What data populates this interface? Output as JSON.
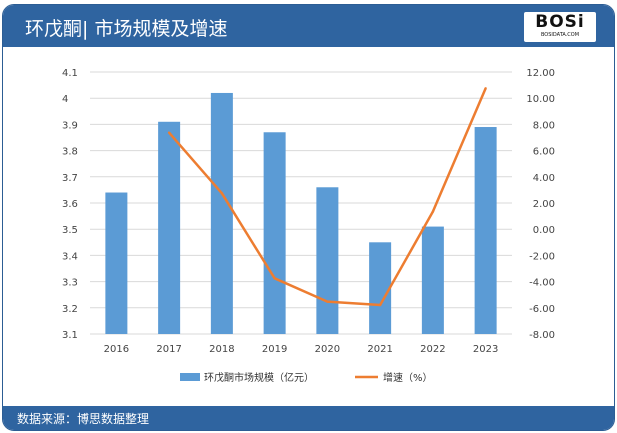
{
  "header": {
    "title": "环戊酮| 市场规模及增速",
    "logo_text": "BOSi",
    "logo_sub": "BOSIDATA.COM"
  },
  "footer": {
    "source": "数据来源：博思数据整理"
  },
  "colors": {
    "bar": "#5b9bd5",
    "line": "#ed7d31",
    "header": "#2f64a0"
  },
  "chart_data": {
    "type": "bar+line",
    "categories": [
      "2016",
      "2017",
      "2018",
      "2019",
      "2020",
      "2021",
      "2022",
      "2023"
    ],
    "series": [
      {
        "name": "环戊酮市场规模（亿元）",
        "type": "bar",
        "axis": "left",
        "values": [
          3.64,
          3.91,
          4.02,
          3.87,
          3.66,
          3.45,
          3.51,
          3.89
        ]
      },
      {
        "name": "增速（%）",
        "type": "line",
        "axis": "right",
        "values": [
          null,
          7.37,
          2.74,
          -3.75,
          -5.53,
          -5.79,
          1.34,
          10.75
        ]
      }
    ],
    "y_left": {
      "ylim": [
        3.1,
        4.1
      ],
      "ticks": [
        "3.1",
        "3.2",
        "3.3",
        "3.4",
        "3.5",
        "3.6",
        "3.7",
        "3.8",
        "3.9",
        "4",
        "4.1"
      ]
    },
    "y_right": {
      "ylim": [
        -8,
        12
      ],
      "ticks": [
        "-8.00",
        "-6.00",
        "-4.00",
        "-2.00",
        "0.00",
        "2.00",
        "4.00",
        "6.00",
        "8.00",
        "10.00",
        "12.00"
      ]
    },
    "grid": true,
    "legend": "bottom"
  }
}
